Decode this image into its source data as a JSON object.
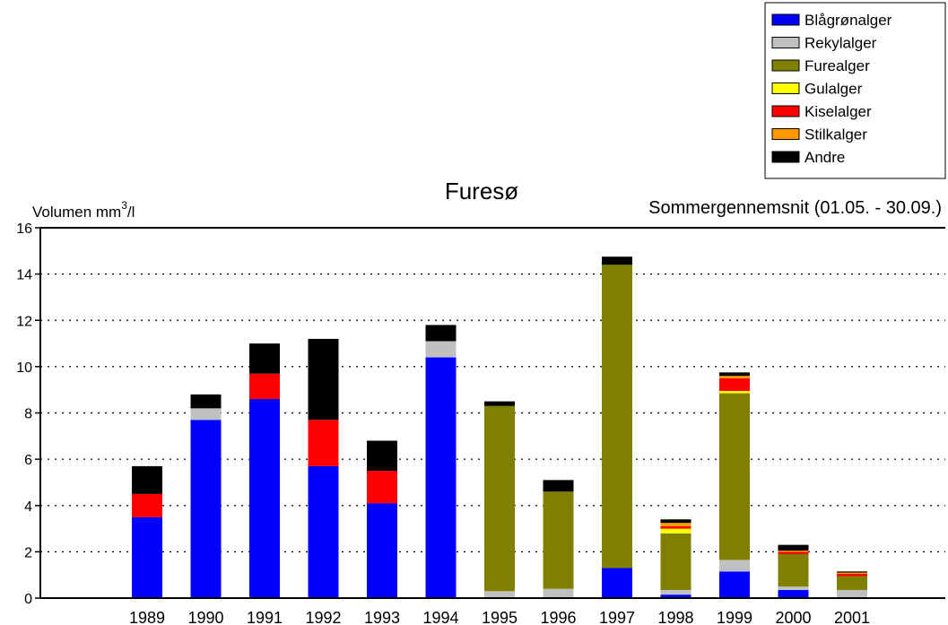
{
  "chart_data": {
    "type": "bar",
    "stacked": true,
    "title": "Furesø",
    "subtitle": "Sommergennemsnit (01.05. - 30.09.)",
    "ylabel_main": "Volumen mm",
    "ylabel_sup": "3",
    "ylabel_tail": "/l",
    "ylim": [
      0,
      16
    ],
    "yticks": [
      0,
      2,
      4,
      6,
      8,
      10,
      12,
      14,
      16
    ],
    "grid": "horizontal-dotted",
    "legend_position": "top-right",
    "categories": [
      "1989",
      "1990",
      "1991",
      "1992",
      "1993",
      "1994",
      "1995",
      "1996",
      "1997",
      "1998",
      "1999",
      "2000",
      "2001"
    ],
    "series": [
      {
        "name": "Blågrønalger",
        "color": "#0000ff",
        "values": [
          3.5,
          7.7,
          8.6,
          5.7,
          4.1,
          10.4,
          0.0,
          0.0,
          1.3,
          0.15,
          1.15,
          0.35,
          0.0
        ]
      },
      {
        "name": "Rekylalger",
        "color": "#c0c0c0",
        "values": [
          0.0,
          0.5,
          0.0,
          0.0,
          0.0,
          0.7,
          0.3,
          0.4,
          0.0,
          0.2,
          0.5,
          0.15,
          0.35
        ]
      },
      {
        "name": "Furealger",
        "color": "#808000",
        "values": [
          0.0,
          0.0,
          0.0,
          0.0,
          0.0,
          0.0,
          8.0,
          4.2,
          13.1,
          2.45,
          7.2,
          1.4,
          0.6
        ]
      },
      {
        "name": "Gulalger",
        "color": "#ffff00",
        "values": [
          0.0,
          0.0,
          0.0,
          0.0,
          0.0,
          0.0,
          0.0,
          0.0,
          0.0,
          0.2,
          0.1,
          0.0,
          0.0
        ]
      },
      {
        "name": "Kiselalger",
        "color": "#ff0000",
        "values": [
          1.0,
          0.0,
          1.1,
          2.0,
          1.4,
          0.0,
          0.0,
          0.0,
          0.0,
          0.1,
          0.55,
          0.1,
          0.1
        ]
      },
      {
        "name": "Stilkalger",
        "color": "#ff9900",
        "values": [
          0.0,
          0.0,
          0.0,
          0.0,
          0.0,
          0.0,
          0.0,
          0.0,
          0.0,
          0.15,
          0.1,
          0.05,
          0.05
        ]
      },
      {
        "name": "Andre",
        "color": "#000000",
        "values": [
          1.2,
          0.6,
          1.3,
          3.5,
          1.3,
          0.7,
          0.2,
          0.5,
          0.35,
          0.15,
          0.15,
          0.25,
          0.05
        ]
      }
    ]
  }
}
